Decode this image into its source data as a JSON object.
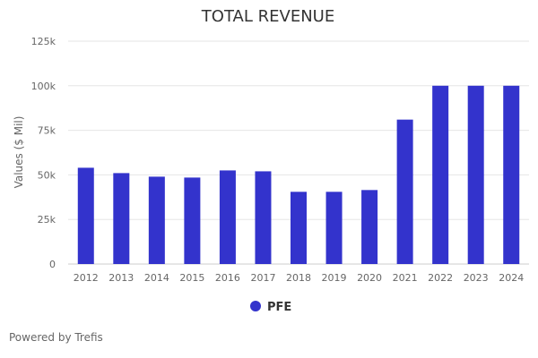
{
  "chart_data": {
    "type": "bar",
    "title": "TOTAL REVENUE",
    "xlabel": "",
    "ylabel": "Values ($ Mil)",
    "categories": [
      "2012",
      "2013",
      "2014",
      "2015",
      "2016",
      "2017",
      "2018",
      "2019",
      "2020",
      "2021",
      "2022",
      "2023",
      "2024"
    ],
    "series": [
      {
        "name": "PFE",
        "values": [
          54000,
          51000,
          49000,
          48500,
          52500,
          52000,
          40500,
          40500,
          41500,
          81000,
          100000,
          100000,
          100000
        ]
      }
    ],
    "ylim": [
      0,
      125000
    ],
    "yticks": [
      0,
      25000,
      50000,
      75000,
      100000,
      125000
    ],
    "ytick_labels": [
      "0",
      "25k",
      "50k",
      "75k",
      "100k",
      "125k"
    ],
    "grid": true,
    "legend_position": "bottom-center",
    "colors": {
      "bar": "#3333CC",
      "grid": "#e6e6e6",
      "text": "#666666",
      "title": "#333333"
    }
  },
  "footer": {
    "text": "Powered by Trefis"
  }
}
